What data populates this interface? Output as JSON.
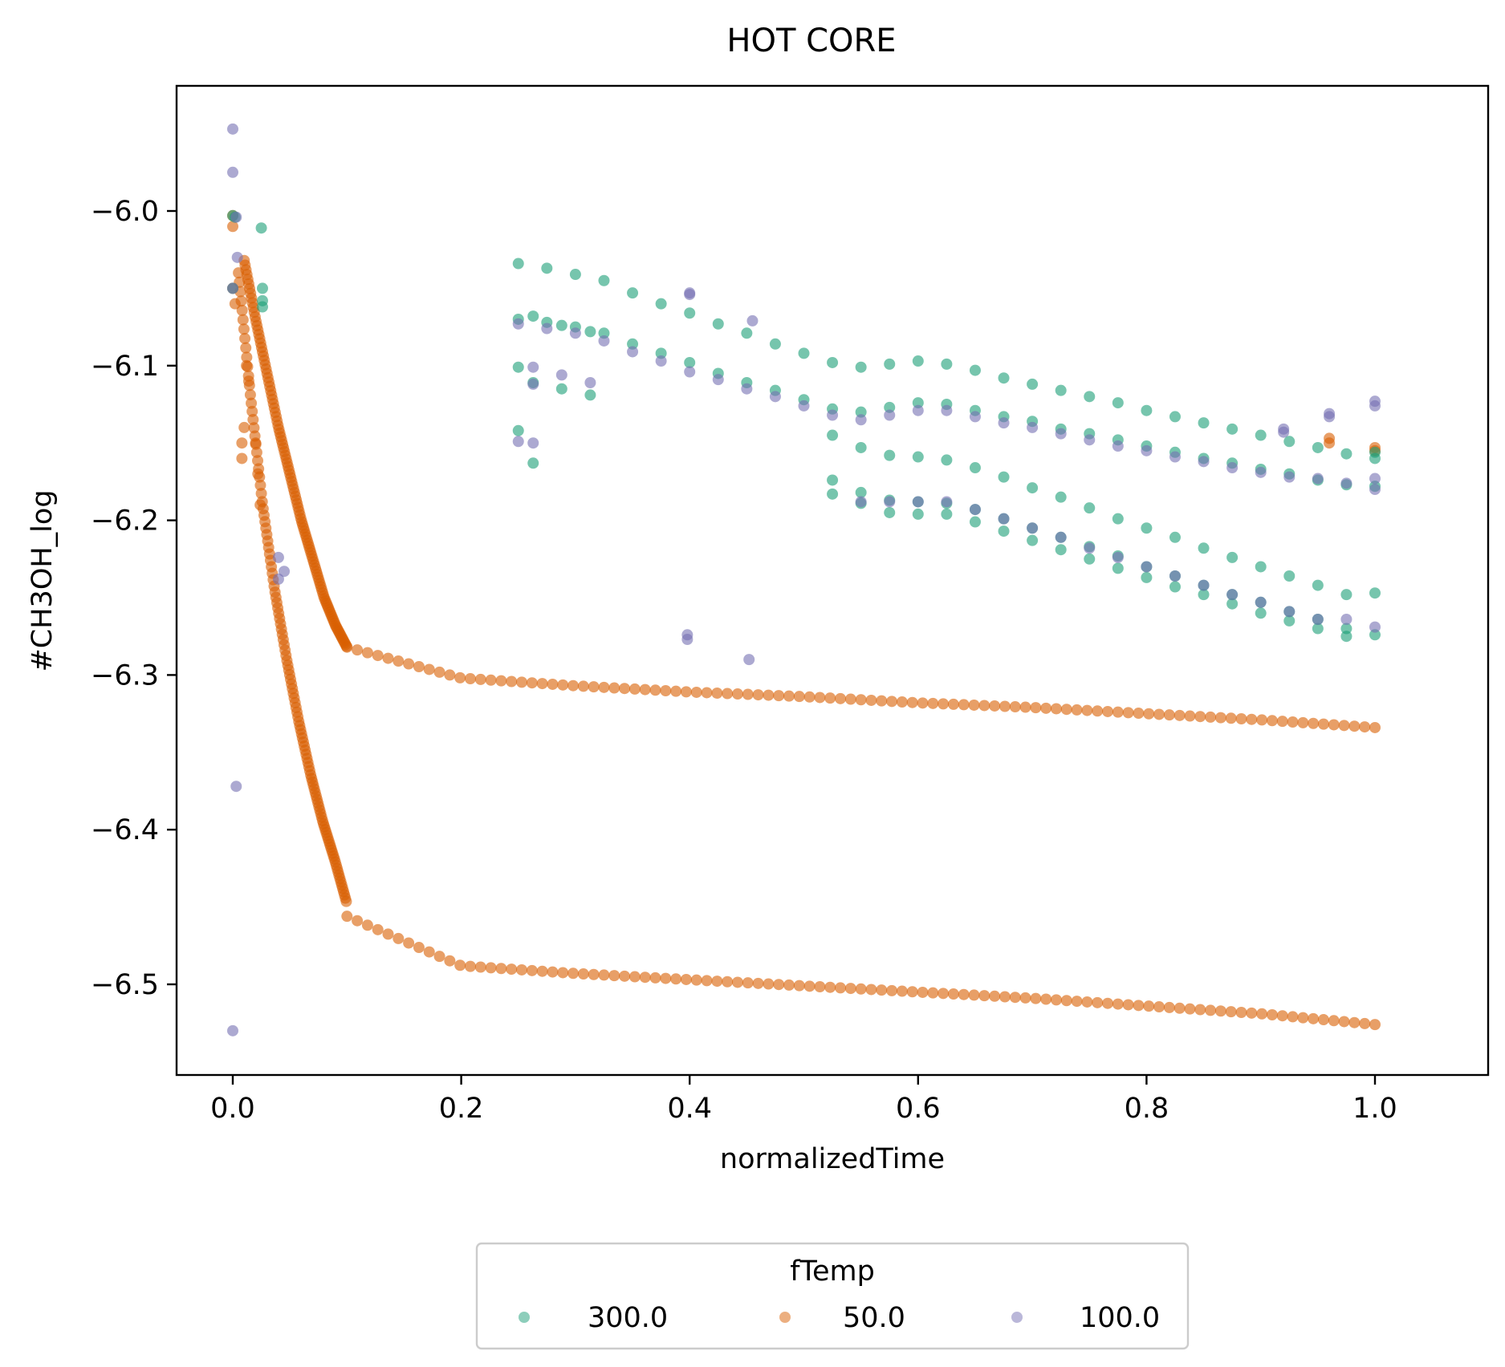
{
  "chart_data": {
    "type": "scatter",
    "title": "HOT CORE",
    "xlabel": "normalizedTime",
    "ylabel": "#CH3OH_log",
    "xlim": [
      -0.05,
      1.1
    ],
    "ylim": [
      -6.56,
      -5.92
    ],
    "xticks": [
      0.0,
      0.2,
      0.4,
      0.6,
      0.8,
      1.0
    ],
    "xtick_labels": [
      "0.0",
      "0.2",
      "0.4",
      "0.6",
      "0.8",
      "1.0"
    ],
    "yticks": [
      -6.0,
      -6.1,
      -6.2,
      -6.3,
      -6.4,
      -6.5
    ],
    "ytick_labels": [
      "−6.0",
      "−6.1",
      "−6.2",
      "−6.3",
      "−6.4",
      "−6.5"
    ],
    "grid": false,
    "legend": {
      "title": "fTemp",
      "placement": "below",
      "entries": [
        "300.0",
        "50.0",
        "100.0"
      ]
    },
    "colors": {
      "300.0": "#1b9e77",
      "50.0": "#d95f02",
      "100.0": "#7570b3"
    },
    "series": [
      {
        "name": "300.0",
        "points": [
          [
            0.0,
            -6.003
          ],
          [
            0.0,
            -6.05
          ],
          [
            0.002,
            -6.004
          ],
          [
            0.025,
            -6.011
          ],
          [
            0.026,
            -6.05
          ],
          [
            0.026,
            -6.058
          ],
          [
            0.026,
            -6.062
          ],
          [
            0.25,
            -6.034
          ],
          [
            0.25,
            -6.07
          ],
          [
            0.25,
            -6.101
          ],
          [
            0.25,
            -6.142
          ],
          [
            0.263,
            -6.068
          ],
          [
            0.263,
            -6.111
          ],
          [
            0.263,
            -6.163
          ],
          [
            0.275,
            -6.037
          ],
          [
            0.275,
            -6.072
          ],
          [
            0.288,
            -6.074
          ],
          [
            0.288,
            -6.115
          ],
          [
            0.3,
            -6.041
          ],
          [
            0.3,
            -6.075
          ],
          [
            0.313,
            -6.078
          ],
          [
            0.313,
            -6.119
          ],
          [
            0.325,
            -6.045
          ],
          [
            0.325,
            -6.079
          ],
          [
            0.35,
            -6.053
          ],
          [
            0.35,
            -6.086
          ],
          [
            0.375,
            -6.06
          ],
          [
            0.375,
            -6.092
          ],
          [
            0.4,
            -6.066
          ],
          [
            0.4,
            -6.098
          ],
          [
            0.425,
            -6.073
          ],
          [
            0.425,
            -6.105
          ],
          [
            0.45,
            -6.079
          ],
          [
            0.45,
            -6.111
          ],
          [
            0.475,
            -6.086
          ],
          [
            0.475,
            -6.116
          ],
          [
            0.5,
            -6.092
          ],
          [
            0.5,
            -6.122
          ],
          [
            0.525,
            -6.098
          ],
          [
            0.525,
            -6.128
          ],
          [
            0.525,
            -6.145
          ],
          [
            0.525,
            -6.174
          ],
          [
            0.525,
            -6.183
          ],
          [
            0.55,
            -6.101
          ],
          [
            0.55,
            -6.13
          ],
          [
            0.55,
            -6.153
          ],
          [
            0.55,
            -6.182
          ],
          [
            0.55,
            -6.189
          ],
          [
            0.575,
            -6.099
          ],
          [
            0.575,
            -6.127
          ],
          [
            0.575,
            -6.158
          ],
          [
            0.575,
            -6.187
          ],
          [
            0.575,
            -6.195
          ],
          [
            0.6,
            -6.097
          ],
          [
            0.6,
            -6.124
          ],
          [
            0.6,
            -6.159
          ],
          [
            0.6,
            -6.188
          ],
          [
            0.6,
            -6.196
          ],
          [
            0.625,
            -6.099
          ],
          [
            0.625,
            -6.125
          ],
          [
            0.625,
            -6.161
          ],
          [
            0.625,
            -6.189
          ],
          [
            0.625,
            -6.196
          ],
          [
            0.65,
            -6.103
          ],
          [
            0.65,
            -6.129
          ],
          [
            0.65,
            -6.166
          ],
          [
            0.65,
            -6.193
          ],
          [
            0.65,
            -6.201
          ],
          [
            0.675,
            -6.108
          ],
          [
            0.675,
            -6.133
          ],
          [
            0.675,
            -6.172
          ],
          [
            0.675,
            -6.199
          ],
          [
            0.675,
            -6.207
          ],
          [
            0.7,
            -6.112
          ],
          [
            0.7,
            -6.136
          ],
          [
            0.7,
            -6.179
          ],
          [
            0.7,
            -6.205
          ],
          [
            0.7,
            -6.213
          ],
          [
            0.725,
            -6.116
          ],
          [
            0.725,
            -6.141
          ],
          [
            0.725,
            -6.185
          ],
          [
            0.725,
            -6.211
          ],
          [
            0.725,
            -6.219
          ],
          [
            0.75,
            -6.12
          ],
          [
            0.75,
            -6.144
          ],
          [
            0.75,
            -6.192
          ],
          [
            0.75,
            -6.217
          ],
          [
            0.75,
            -6.225
          ],
          [
            0.775,
            -6.124
          ],
          [
            0.775,
            -6.148
          ],
          [
            0.775,
            -6.199
          ],
          [
            0.775,
            -6.223
          ],
          [
            0.775,
            -6.231
          ],
          [
            0.8,
            -6.129
          ],
          [
            0.8,
            -6.152
          ],
          [
            0.8,
            -6.205
          ],
          [
            0.8,
            -6.23
          ],
          [
            0.8,
            -6.237
          ],
          [
            0.825,
            -6.133
          ],
          [
            0.825,
            -6.156
          ],
          [
            0.825,
            -6.211
          ],
          [
            0.825,
            -6.236
          ],
          [
            0.825,
            -6.243
          ],
          [
            0.85,
            -6.137
          ],
          [
            0.85,
            -6.16
          ],
          [
            0.85,
            -6.218
          ],
          [
            0.85,
            -6.242
          ],
          [
            0.85,
            -6.248
          ],
          [
            0.875,
            -6.141
          ],
          [
            0.875,
            -6.163
          ],
          [
            0.875,
            -6.224
          ],
          [
            0.875,
            -6.248
          ],
          [
            0.875,
            -6.254
          ],
          [
            0.9,
            -6.145
          ],
          [
            0.9,
            -6.167
          ],
          [
            0.9,
            -6.23
          ],
          [
            0.9,
            -6.253
          ],
          [
            0.9,
            -6.26
          ],
          [
            0.925,
            -6.149
          ],
          [
            0.925,
            -6.17
          ],
          [
            0.925,
            -6.236
          ],
          [
            0.925,
            -6.259
          ],
          [
            0.925,
            -6.265
          ],
          [
            0.95,
            -6.153
          ],
          [
            0.95,
            -6.174
          ],
          [
            0.95,
            -6.242
          ],
          [
            0.95,
            -6.264
          ],
          [
            0.95,
            -6.27
          ],
          [
            0.975,
            -6.157
          ],
          [
            0.975,
            -6.177
          ],
          [
            0.975,
            -6.248
          ],
          [
            0.975,
            -6.27
          ],
          [
            0.975,
            -6.275
          ],
          [
            1.0,
            -6.156
          ],
          [
            1.0,
            -6.16
          ],
          [
            1.0,
            -6.178
          ],
          [
            1.0,
            -6.247
          ],
          [
            1.0,
            -6.274
          ]
        ]
      },
      {
        "name": "50.0",
        "points": [
          [
            0.0,
            -6.003
          ],
          [
            0.0,
            -6.01
          ],
          [
            0.0,
            -6.05
          ],
          [
            0.002,
            -6.06
          ],
          [
            0.008,
            -6.15
          ],
          [
            0.008,
            -6.16
          ],
          [
            0.01,
            -6.14
          ],
          [
            0.012,
            -6.1
          ],
          [
            0.014,
            -6.11
          ],
          [
            0.02,
            -6.15
          ],
          [
            0.022,
            -6.17
          ],
          [
            0.024,
            -6.19
          ],
          [
            0.96,
            -6.147
          ],
          [
            0.96,
            -6.15
          ],
          [
            1.0,
            -6.153
          ],
          [
            1.0,
            -6.155
          ]
        ],
        "curves": [
          {
            "x0": 0.01,
            "x1": 0.1,
            "y": [
              -6.032,
              -6.07,
              -6.105,
              -6.14,
              -6.17,
              -6.2,
              -6.225,
              -6.25,
              -6.268,
              -6.282
            ]
          },
          {
            "x0": 0.1,
            "x1": 1.0,
            "y": [
              -6.282,
              -6.302,
              -6.307,
              -6.311,
              -6.314,
              -6.318,
              -6.321,
              -6.325,
              -6.329,
              -6.334
            ]
          },
          {
            "x0": 0.005,
            "x1": 0.1,
            "y": [
              -6.04,
              -6.12,
              -6.19,
              -6.245,
              -6.29,
              -6.33,
              -6.365,
              -6.395,
              -6.42,
              -6.448
            ]
          },
          {
            "x0": 0.1,
            "x1": 1.0,
            "y": [
              -6.456,
              -6.488,
              -6.493,
              -6.497,
              -6.501,
              -6.505,
              -6.509,
              -6.514,
              -6.519,
              -6.526
            ]
          }
        ]
      },
      {
        "name": "100.0",
        "points": [
          [
            0.0,
            -5.947
          ],
          [
            0.0,
            -5.975
          ],
          [
            0.0,
            -6.05
          ],
          [
            0.0,
            -6.53
          ],
          [
            0.003,
            -6.004
          ],
          [
            0.003,
            -6.372
          ],
          [
            0.004,
            -6.03
          ],
          [
            0.04,
            -6.224
          ],
          [
            0.04,
            -6.238
          ],
          [
            0.045,
            -6.233
          ],
          [
            0.25,
            -6.073
          ],
          [
            0.25,
            -6.149
          ],
          [
            0.263,
            -6.101
          ],
          [
            0.263,
            -6.112
          ],
          [
            0.263,
            -6.15
          ],
          [
            0.275,
            -6.076
          ],
          [
            0.288,
            -6.106
          ],
          [
            0.3,
            -6.079
          ],
          [
            0.313,
            -6.111
          ],
          [
            0.325,
            -6.084
          ],
          [
            0.35,
            -6.091
          ],
          [
            0.375,
            -6.097
          ],
          [
            0.398,
            -6.274
          ],
          [
            0.398,
            -6.277
          ],
          [
            0.4,
            -6.053
          ],
          [
            0.4,
            -6.054
          ],
          [
            0.4,
            -6.104
          ],
          [
            0.425,
            -6.109
          ],
          [
            0.45,
            -6.115
          ],
          [
            0.452,
            -6.29
          ],
          [
            0.455,
            -6.071
          ],
          [
            0.475,
            -6.12
          ],
          [
            0.5,
            -6.126
          ],
          [
            0.525,
            -6.132
          ],
          [
            0.55,
            -6.135
          ],
          [
            0.55,
            -6.188
          ],
          [
            0.575,
            -6.132
          ],
          [
            0.575,
            -6.188
          ],
          [
            0.6,
            -6.129
          ],
          [
            0.6,
            -6.188
          ],
          [
            0.625,
            -6.129
          ],
          [
            0.625,
            -6.188
          ],
          [
            0.65,
            -6.133
          ],
          [
            0.65,
            -6.193
          ],
          [
            0.675,
            -6.137
          ],
          [
            0.675,
            -6.199
          ],
          [
            0.7,
            -6.14
          ],
          [
            0.7,
            -6.205
          ],
          [
            0.725,
            -6.144
          ],
          [
            0.725,
            -6.211
          ],
          [
            0.75,
            -6.148
          ],
          [
            0.75,
            -6.218
          ],
          [
            0.775,
            -6.152
          ],
          [
            0.775,
            -6.224
          ],
          [
            0.8,
            -6.155
          ],
          [
            0.8,
            -6.23
          ],
          [
            0.825,
            -6.159
          ],
          [
            0.825,
            -6.236
          ],
          [
            0.85,
            -6.162
          ],
          [
            0.85,
            -6.242
          ],
          [
            0.875,
            -6.166
          ],
          [
            0.875,
            -6.248
          ],
          [
            0.9,
            -6.169
          ],
          [
            0.9,
            -6.253
          ],
          [
            0.92,
            -6.141
          ],
          [
            0.92,
            -6.143
          ],
          [
            0.925,
            -6.172
          ],
          [
            0.925,
            -6.259
          ],
          [
            0.95,
            -6.173
          ],
          [
            0.95,
            -6.264
          ],
          [
            0.96,
            -6.131
          ],
          [
            0.96,
            -6.133
          ],
          [
            0.975,
            -6.176
          ],
          [
            0.975,
            -6.264
          ],
          [
            1.0,
            -6.123
          ],
          [
            1.0,
            -6.126
          ],
          [
            1.0,
            -6.173
          ],
          [
            1.0,
            -6.18
          ],
          [
            1.0,
            -6.269
          ]
        ]
      }
    ]
  }
}
